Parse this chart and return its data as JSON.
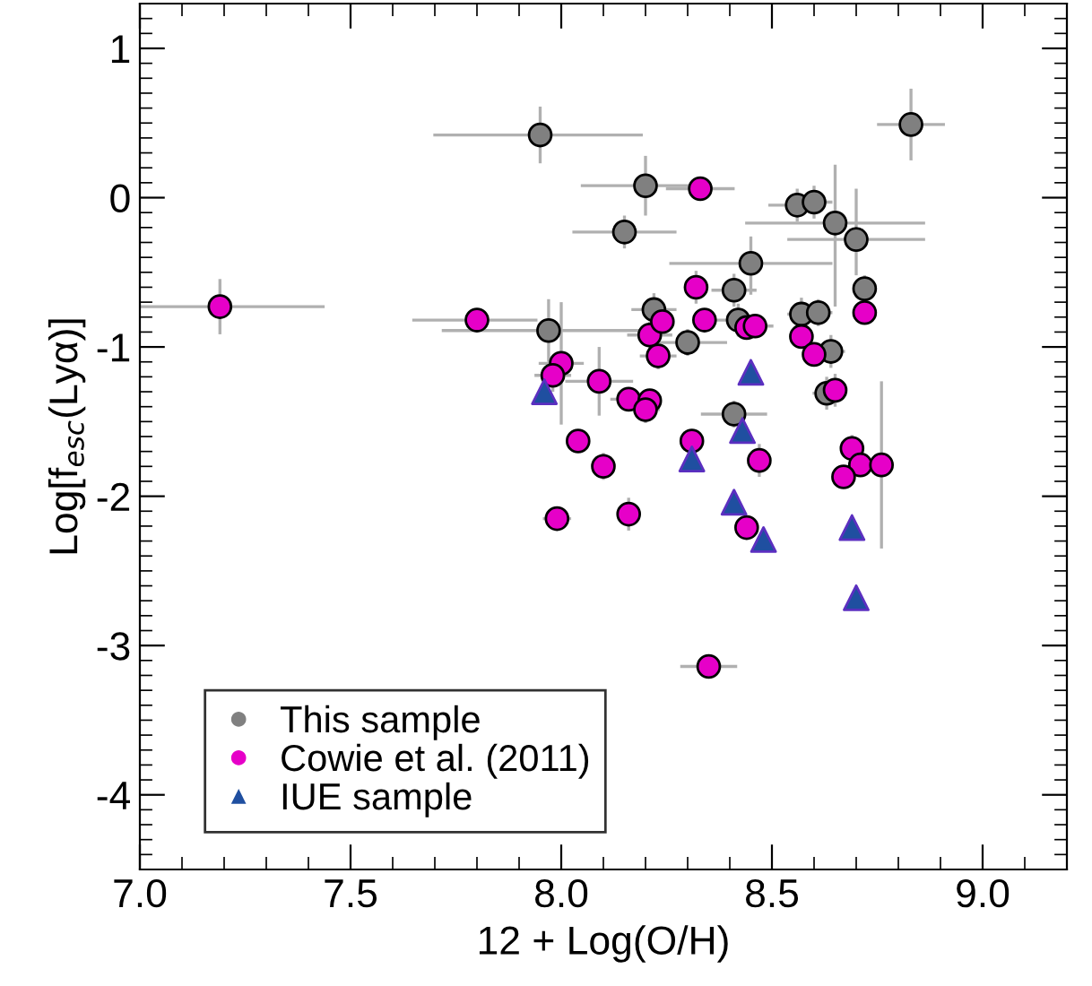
{
  "chart_data": {
    "type": "scatter",
    "xlabel": "12 + Log(O/H)",
    "ylabel": "Log[f$_{esc}$(Lyα)]",
    "xlim": [
      7.0,
      9.2
    ],
    "ylim": [
      -4.5,
      1.3
    ],
    "xticks": [
      {
        "value": 7.0,
        "label": "7.0"
      },
      7.5,
      {
        "value": 8.0,
        "label": "8.0"
      },
      8.5,
      {
        "value": 9.0,
        "label": "9.0"
      }
    ],
    "yticks": [
      -4,
      -3,
      -2,
      -1,
      0,
      1
    ],
    "legend": "bottom left",
    "grid": false,
    "series": [
      {
        "name": "This sample",
        "color": "#808080",
        "marker": "circle",
        "x": [
          7.95,
          8.2,
          8.15,
          8.56,
          8.6,
          8.65,
          8.7,
          8.83,
          8.45,
          8.41,
          8.72,
          8.57,
          8.61,
          8.42,
          8.22,
          8.3,
          7.97,
          8.64,
          8.63,
          8.41
        ],
        "values": [
          0.42,
          0.08,
          -0.23,
          -0.05,
          -0.03,
          -0.17,
          -0.28,
          0.49,
          -0.44,
          -0.62,
          -0.61,
          -0.78,
          -0.77,
          -0.82,
          -0.75,
          -0.97,
          -0.89,
          -1.03,
          -1.31,
          -1.45
        ],
        "errors": [
          0.18,
          0.19,
          0.1,
          0.1,
          0.1,
          [
            -0.72,
            0.21
          ],
          [
            -0.51,
            0.05
          ],
          0.23,
          [
            -0.64,
            -0.27
          ],
          0.1,
          0.08,
          0.1,
          0.08,
          0.1,
          0.1,
          0.08,
          0.2,
          0.1,
          0.1,
          0.08
        ],
        "xerrors": [
          [
            7.7,
            8.19
          ],
          0.15,
          0.12,
          0.065,
          0.04,
          0.21,
          0.16,
          0.077,
          0.19,
          0.05,
          null,
          0.03,
          0.03,
          0.06,
          0.05,
          0.09,
          0.25,
          0.03,
          0.03,
          0.075
        ]
      },
      {
        "name": "Cowie et al. (2011)",
        "color": "#e600c8",
        "marker": "circle",
        "x": [
          7.19,
          7.8,
          8.0,
          7.98,
          8.09,
          8.16,
          8.21,
          8.2,
          8.21,
          8.24,
          8.23,
          8.32,
          8.34,
          8.33,
          8.44,
          8.46,
          8.57,
          8.6,
          8.65,
          8.72,
          8.04,
          8.31,
          8.1,
          8.47,
          8.69,
          8.71,
          8.67,
          8.76,
          7.99,
          8.16,
          8.44,
          8.35
        ],
        "values": [
          -0.73,
          -0.82,
          -1.11,
          -1.19,
          -1.23,
          -1.35,
          -1.36,
          -1.42,
          -0.92,
          -0.83,
          -1.06,
          -0.6,
          -0.82,
          0.06,
          -0.87,
          -0.86,
          -0.93,
          -1.05,
          -1.29,
          -0.77,
          -1.63,
          -1.63,
          -1.8,
          -1.76,
          -1.68,
          -1.79,
          -1.87,
          -1.79,
          -2.15,
          -2.12,
          -2.21,
          -3.14
        ],
        "errors": [
          0.175,
          0.07,
          0.4,
          0.1,
          0.22,
          0.07,
          null,
          0.08,
          0.08,
          null,
          0.08,
          0.1,
          null,
          0.07,
          null,
          null,
          0.07,
          null,
          0.1,
          null,
          null,
          0.07,
          0.08,
          0.1,
          0.08,
          null,
          0.05,
          0.55,
          0.05,
          0.1,
          null,
          0.05
        ],
        "xerrors": [
          [
            7.0,
            7.435
          ],
          [
            7.65,
            7.94
          ],
          0.05,
          0.04,
          0.077,
          0.04,
          null,
          0.03,
          0.05,
          null,
          0.04,
          null,
          null,
          0.078,
          null,
          0.04,
          null,
          null,
          null,
          null,
          null,
          null,
          null,
          null,
          null,
          null,
          null,
          null,
          0.03,
          null,
          null,
          0.064
        ]
      },
      {
        "name": "IUE sample",
        "color": "#1f4fa0",
        "marker": "triangle",
        "x": [
          7.96,
          8.45,
          8.43,
          8.31,
          8.41,
          8.48,
          8.69,
          8.7
        ],
        "values": [
          -1.3,
          -1.17,
          -1.56,
          -1.75,
          -2.04,
          -2.29,
          -2.21,
          -2.68
        ]
      }
    ]
  }
}
